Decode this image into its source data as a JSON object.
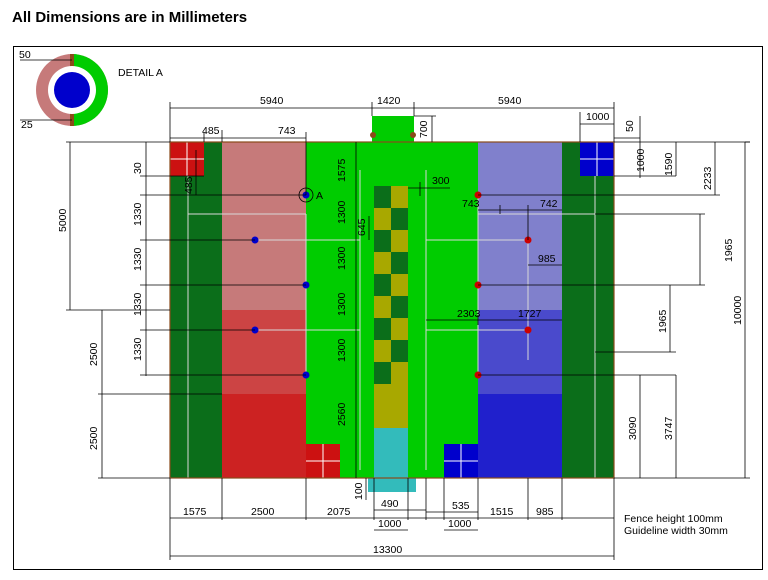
{
  "title": "All Dimensions are in Millimeters",
  "detail_label": "DETAIL A",
  "detail_a_dims": [
    "50",
    "25"
  ],
  "point_label": "A",
  "notes": [
    "Fence height 100mm",
    "Guideline width 30mm"
  ],
  "dims": {
    "top_left_span": "5940",
    "top_center_span": "1420",
    "top_right_span": "5940",
    "left_corner_width": "485",
    "left_field_offset": "743",
    "top_goal_depth": "700",
    "top_right_goal": "1000",
    "top_right_50": "50",
    "top_right_1000v": "1000",
    "right_1590": "1590",
    "right_2233": "2233",
    "right_1965a": "1965",
    "right_1965b": "1965",
    "right_3090": "3090",
    "right_3747": "3747",
    "right_total": "10000",
    "left_30": "30",
    "left_485v": "485",
    "left_5000": "5000",
    "left_1330a": "1330",
    "left_1330b": "1330",
    "left_1330c": "1330",
    "left_1330d": "1330",
    "left_2500a": "2500",
    "left_2500b": "2500",
    "center_1575": "1575",
    "center_1300a": "1300",
    "center_1300b": "1300",
    "center_1300c": "1300",
    "center_1300d": "1300",
    "center_2560": "2560",
    "center_645": "645",
    "center_300": "300",
    "right_743": "743",
    "right_742": "742",
    "right_985": "985",
    "right_2303": "2303",
    "right_1727": "1727",
    "bottom_100": "100",
    "bottom_490": "490",
    "bottom_535": "535",
    "bottom_1000a": "1000",
    "bottom_1000b": "1000",
    "bottom_1575": "1575",
    "bottom_2500": "2500",
    "bottom_2075": "2075",
    "bottom_1515": "1515",
    "bottom_985": "985",
    "bottom_total": "13300"
  },
  "colors": {
    "dark_green": "#0b6e1a",
    "bright_green": "#00cc00",
    "pink": "#c67a7a",
    "red_mid": "#cc4444",
    "red_dark": "#cc2222",
    "red_square": "#cc1111",
    "blue_light": "#8080cc",
    "blue_mid": "#4a4acc",
    "blue_dark": "#2020cc",
    "blue_square": "#0000cc",
    "yellow_olive": "#a8a800",
    "teal": "#33bbbb",
    "border_brown": "#8a4a1a"
  }
}
